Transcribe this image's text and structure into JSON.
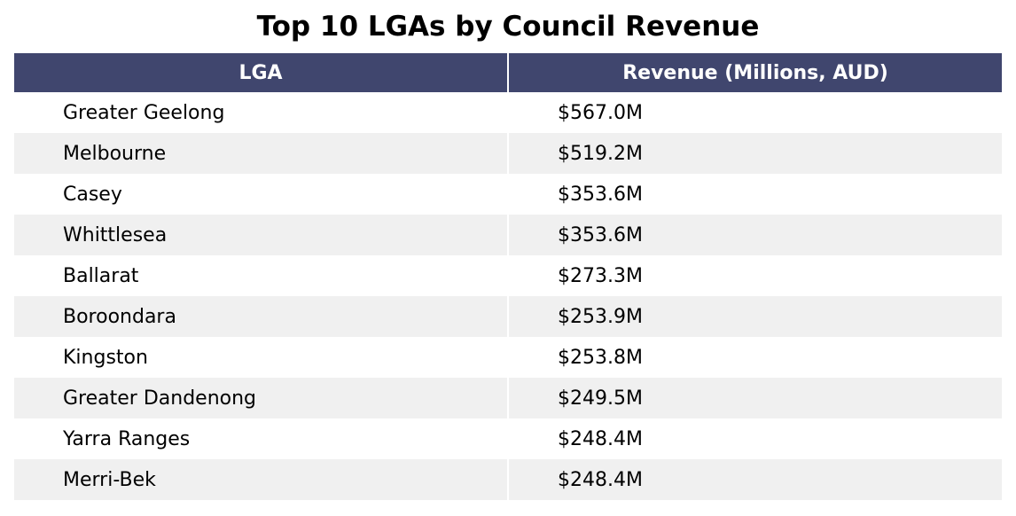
{
  "chart_data": {
    "type": "table",
    "title": "Top 10 LGAs by Council Revenue",
    "columns": [
      "LGA",
      "Revenue (Millions, AUD)"
    ],
    "rows": [
      {
        "lga": "Greater Geelong",
        "revenue": "$567.0M"
      },
      {
        "lga": "Melbourne",
        "revenue": "$519.2M"
      },
      {
        "lga": "Casey",
        "revenue": "$353.6M"
      },
      {
        "lga": "Whittlesea",
        "revenue": "$353.6M"
      },
      {
        "lga": "Ballarat",
        "revenue": "$273.3M"
      },
      {
        "lga": "Boroondara",
        "revenue": "$253.9M"
      },
      {
        "lga": "Kingston",
        "revenue": "$253.8M"
      },
      {
        "lga": "Greater Dandenong",
        "revenue": "$249.5M"
      },
      {
        "lga": "Yarra Ranges",
        "revenue": "$248.4M"
      },
      {
        "lga": "Merri-Bek",
        "revenue": "$248.4M"
      }
    ]
  },
  "colors": {
    "header_bg": "#40466e",
    "header_text": "#ffffff",
    "alt_row_bg": "#f0f0f0",
    "row_bg": "#ffffff"
  }
}
